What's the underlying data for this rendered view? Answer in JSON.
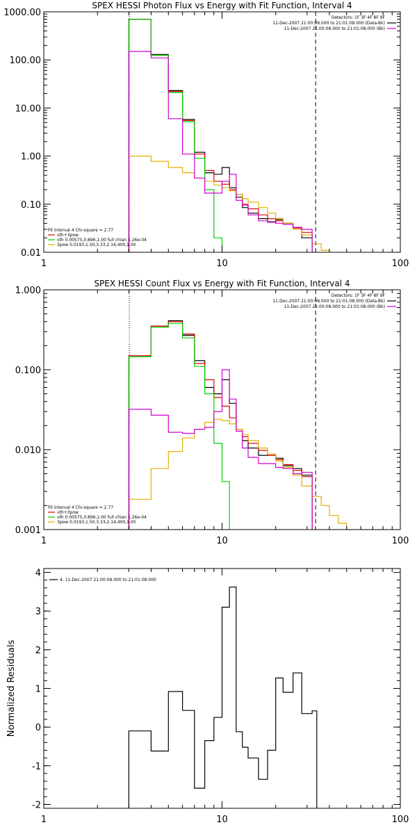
{
  "chart_data": [
    {
      "type": "line",
      "title": "SPEX HESSI Photon Flux vs Energy with Fit Function, Interval 4",
      "xlabel": "",
      "ylabel": "",
      "xscale": "log",
      "yscale": "log",
      "xlim": [
        1,
        100
      ],
      "ylim": [
        0.01,
        1000
      ],
      "xticks": [
        {
          "v": 1,
          "label": "1"
        },
        {
          "v": 10,
          "label": "10"
        },
        {
          "v": 100,
          "label": "100"
        }
      ],
      "yticks": [
        {
          "v": 1000,
          "label": "1000.00"
        },
        {
          "v": 100,
          "label": "100.00"
        },
        {
          "v": 10,
          "label": "10.00"
        },
        {
          "v": 1,
          "label": "1.00"
        },
        {
          "v": 0.1,
          "label": "0.10"
        },
        {
          "v": 0.01,
          "label": "0.01"
        }
      ],
      "x_edges": [
        3,
        4,
        5,
        6,
        7,
        8,
        9,
        10,
        11,
        12,
        13,
        14,
        16,
        18,
        20,
        22,
        25,
        28,
        32,
        36,
        40
      ],
      "series": [
        {
          "id": "data",
          "color": "#000000",
          "values": [
            700,
            130,
            23,
            5.8,
            1.2,
            0.45,
            0.42,
            0.58,
            0.22,
            0.14,
            0.085,
            0.065,
            0.05,
            0.043,
            0.048,
            0.04,
            0.032,
            0.02,
            null,
            null
          ]
        },
        {
          "id": "vth+3pow",
          "color": "#e00000",
          "values": [
            700,
            125,
            22,
            5.5,
            1.1,
            0.5,
            0.3,
            0.26,
            0.2,
            0.16,
            0.1,
            0.08,
            0.06,
            0.05,
            0.045,
            0.04,
            0.032,
            0.026,
            null,
            null
          ]
        },
        {
          "id": "vth",
          "color": "#00d000",
          "values": [
            700,
            125,
            21,
            5.2,
            0.9,
            0.2,
            0.02,
            null,
            null,
            null,
            null,
            null,
            null,
            null,
            null,
            null,
            null,
            null,
            null,
            null
          ]
        },
        {
          "id": "3pow",
          "color": "#e0b000",
          "values": [
            1.0,
            0.78,
            0.58,
            0.45,
            0.35,
            0.3,
            0.25,
            0.22,
            0.19,
            0.16,
            0.13,
            0.11,
            0.085,
            0.065,
            0.05,
            0.04,
            0.03,
            0.023,
            0.015,
            0.011
          ]
        },
        {
          "id": "bk",
          "color": "#d000d0",
          "values": [
            150,
            110,
            6,
            1.1,
            0.35,
            0.17,
            0.17,
            0.3,
            0.42,
            0.12,
            0.095,
            0.06,
            0.045,
            0.042,
            0.04,
            0.038,
            0.033,
            0.03,
            null,
            null
          ]
        }
      ],
      "vlines": [
        {
          "x": 3.02,
          "style": "dotted"
        },
        {
          "x": 33.5,
          "style": "dashed"
        }
      ],
      "header": {
        "detectors": "Detectors: 1F 3F 4F 8F 9F",
        "line1": "11-Dec-2007 21:00:08.000 to 21:01:08.000 (Data-Bk)",
        "line2": "11-Dec-2007 21:00:08.000 to 21:01:08.000 (Bk)"
      },
      "legend": {
        "placement": "bottom-left",
        "fit_label": "Fit Interval  4    Chi-square = 2.77",
        "entries": [
          {
            "label": "vth+3pow",
            "color": "#e00000"
          },
          {
            "label": "vth 0.00575,0.896,1.00  full chian 1.26e-04",
            "color": "#00d000"
          },
          {
            "label": "3pow 0.0193,1.50,3.33,2.14,400,1.00",
            "color": "#e0b000"
          }
        ]
      }
    },
    {
      "type": "line",
      "title": "SPEX HESSI Count Flux vs Energy with Fit Function, Interval 4",
      "xlabel": "",
      "ylabel": "",
      "xscale": "log",
      "yscale": "log",
      "xlim": [
        1,
        100
      ],
      "ylim": [
        0.001,
        1
      ],
      "xticks": [
        {
          "v": 1,
          "label": "1"
        },
        {
          "v": 10,
          "label": "10"
        },
        {
          "v": 100,
          "label": "100"
        }
      ],
      "yticks": [
        {
          "v": 1,
          "label": "1.000"
        },
        {
          "v": 0.1,
          "label": "0.100"
        },
        {
          "v": 0.01,
          "label": "0.010"
        },
        {
          "v": 0.001,
          "label": "0.001"
        }
      ],
      "x_edges": [
        3,
        4,
        5,
        6,
        7,
        8,
        9,
        10,
        11,
        12,
        13,
        14,
        16,
        18,
        20,
        22,
        25,
        28,
        32,
        36,
        40,
        45,
        50,
        56
      ],
      "series": [
        {
          "id": "data",
          "color": "#000000",
          "values": [
            0.145,
            0.35,
            0.41,
            0.27,
            0.13,
            0.06,
            0.05,
            0.075,
            0.038,
            0.018,
            0.013,
            0.0105,
            0.0085,
            0.0085,
            0.0078,
            0.0063,
            0.0058,
            0.0048,
            null,
            null,
            null,
            null,
            null
          ]
        },
        {
          "id": "vth+3pow",
          "color": "#e00000",
          "values": [
            0.15,
            0.35,
            0.4,
            0.28,
            0.12,
            0.075,
            0.045,
            0.035,
            0.025,
            0.018,
            0.0145,
            0.012,
            0.0098,
            0.0085,
            0.0075,
            0.0065,
            0.0055,
            0.0046,
            null,
            null,
            null,
            null,
            null
          ]
        },
        {
          "id": "vth",
          "color": "#00d000",
          "values": [
            0.145,
            0.34,
            0.38,
            0.25,
            0.11,
            0.05,
            0.012,
            0.004,
            null,
            null,
            null,
            null,
            null,
            null,
            null,
            null,
            null,
            null,
            null,
            null,
            null,
            null,
            null
          ]
        },
        {
          "id": "3pow",
          "color": "#e0b000",
          "values": [
            0.0024,
            0.0058,
            0.0095,
            0.014,
            0.018,
            0.022,
            0.024,
            0.023,
            0.021,
            0.018,
            0.0155,
            0.013,
            0.0105,
            0.0088,
            0.0072,
            0.006,
            0.0048,
            0.0035,
            0.0026,
            0.002,
            0.0015,
            0.0012,
            0.001
          ]
        },
        {
          "id": "bk",
          "color": "#d000d0",
          "values": [
            0.032,
            0.027,
            0.0165,
            0.016,
            0.018,
            0.019,
            0.03,
            0.1,
            0.043,
            0.017,
            0.0105,
            0.008,
            0.0067,
            0.0067,
            0.006,
            0.0058,
            0.005,
            0.0052,
            null,
            null,
            null,
            null,
            null
          ]
        }
      ],
      "vlines": [
        {
          "x": 3.02,
          "style": "dotted"
        },
        {
          "x": 33.5,
          "style": "dashed"
        }
      ],
      "header": {
        "detectors": "Detectors: 1F 3F 4F 8F 9F",
        "line1": "11-Dec-2007 21:00:08.000 to 21:01:08.000 (Data-Bk)",
        "line2": "11-Dec-2007 21:00:08.000 to 21:01:08.000 (Bk)"
      },
      "legend": {
        "placement": "bottom-left",
        "fit_label": "Fit Interval  4    Chi-square = 2.77",
        "entries": [
          {
            "label": "vth+3pow",
            "color": "#e00000"
          },
          {
            "label": "vth 0.00575,0.896,1.00  full chian 1.26e-04",
            "color": "#00d000"
          },
          {
            "label": "3pow 0.0193,1.50,3.33,2.14,400,1.00",
            "color": "#e0b000"
          }
        ]
      }
    },
    {
      "type": "line",
      "title": "",
      "xlabel": "",
      "ylabel": "Normalized Residuals",
      "xscale": "log",
      "yscale": "linear",
      "xlim": [
        1,
        100
      ],
      "ylim": [
        -2.1,
        4.1
      ],
      "xticks": [
        {
          "v": 1,
          "label": "1"
        },
        {
          "v": 10,
          "label": "10"
        },
        {
          "v": 100,
          "label": "100"
        }
      ],
      "yticks": [
        {
          "v": 4,
          "label": "4"
        },
        {
          "v": 3,
          "label": "3"
        },
        {
          "v": 2,
          "label": "2"
        },
        {
          "v": 1,
          "label": "1"
        },
        {
          "v": 0,
          "label": "0"
        },
        {
          "v": -1,
          "label": "-1"
        },
        {
          "v": -2,
          "label": "-2"
        }
      ],
      "x_edges": [
        3,
        4,
        5,
        6,
        7,
        8,
        9,
        10,
        11,
        12,
        13,
        14,
        16,
        18,
        20,
        22,
        25,
        28,
        32,
        34
      ],
      "series": [
        {
          "id": "residuals",
          "color": "#000000",
          "values": [
            -0.1,
            -0.62,
            0.92,
            0.43,
            -1.58,
            -0.35,
            0.25,
            3.1,
            3.62,
            -0.12,
            -0.52,
            -0.8,
            -1.35,
            -0.6,
            1.27,
            0.9,
            1.4,
            0.35,
            0.42
          ]
        }
      ],
      "vlines": [],
      "legend": {
        "placement": "top-left",
        "entries": [
          {
            "label": "4. 11-Dec-2007 21:00:08.000 to 21:01:08.000",
            "color": "#000000"
          }
        ]
      }
    }
  ]
}
